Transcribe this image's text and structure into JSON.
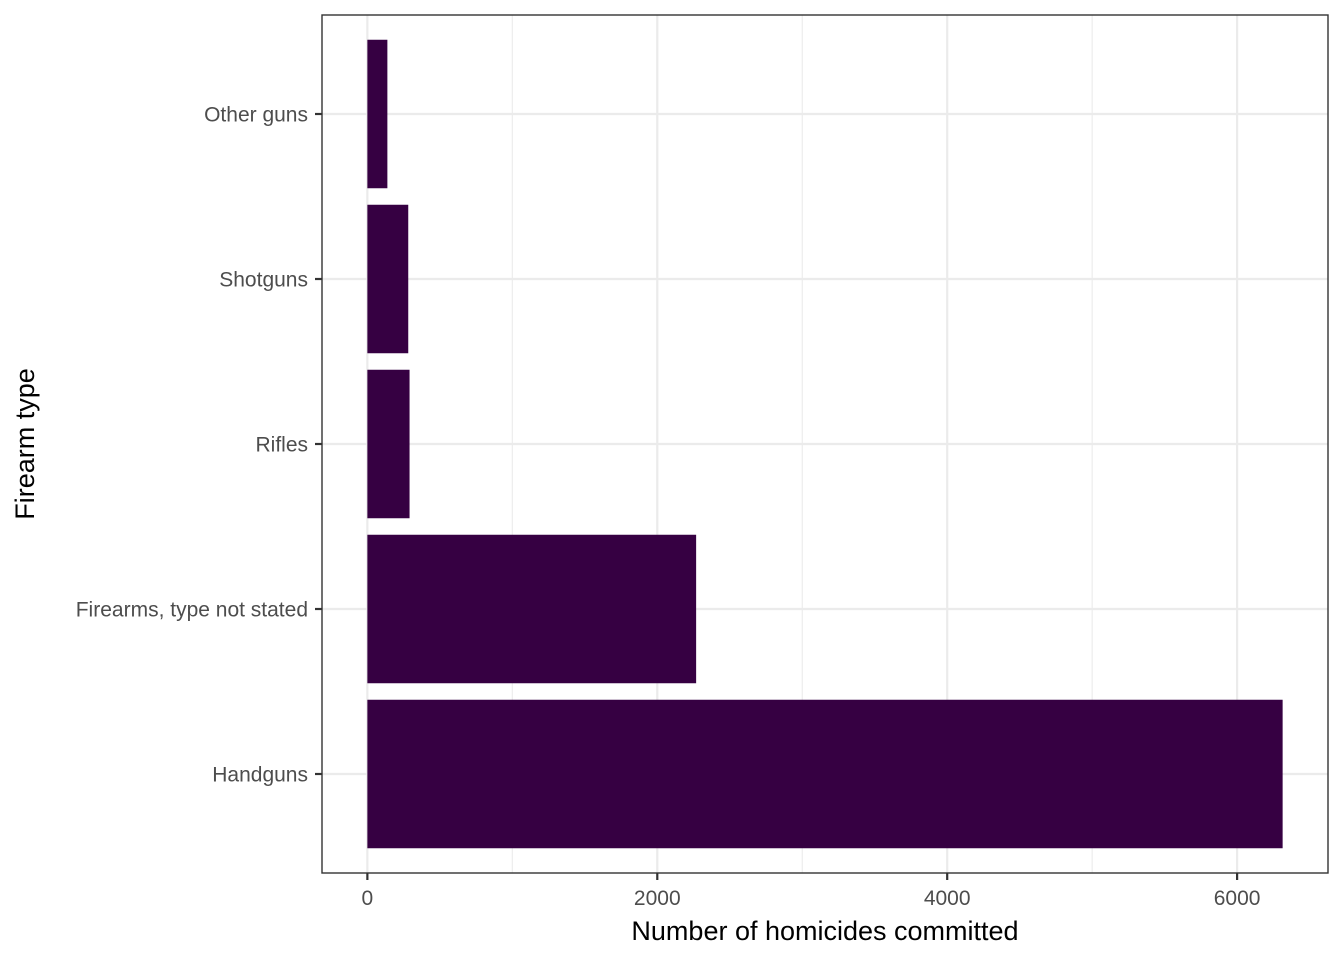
{
  "chart_data": {
    "type": "bar",
    "orientation": "horizontal",
    "categories": [
      "Handguns",
      "Firearms, type not stated",
      "Rifles",
      "Shotguns",
      "Other guns"
    ],
    "values": [
      6314,
      2268,
      291,
      282,
      138
    ],
    "xlabel": "Number of homicides committed",
    "ylabel": "Firearm type",
    "xlim": [
      -313,
      6627
    ],
    "x_ticks": [
      0,
      2000,
      4000,
      6000
    ],
    "x_minor_ticks": [
      1000,
      3000,
      5000
    ],
    "grid": true,
    "bar_color": "#360042"
  }
}
